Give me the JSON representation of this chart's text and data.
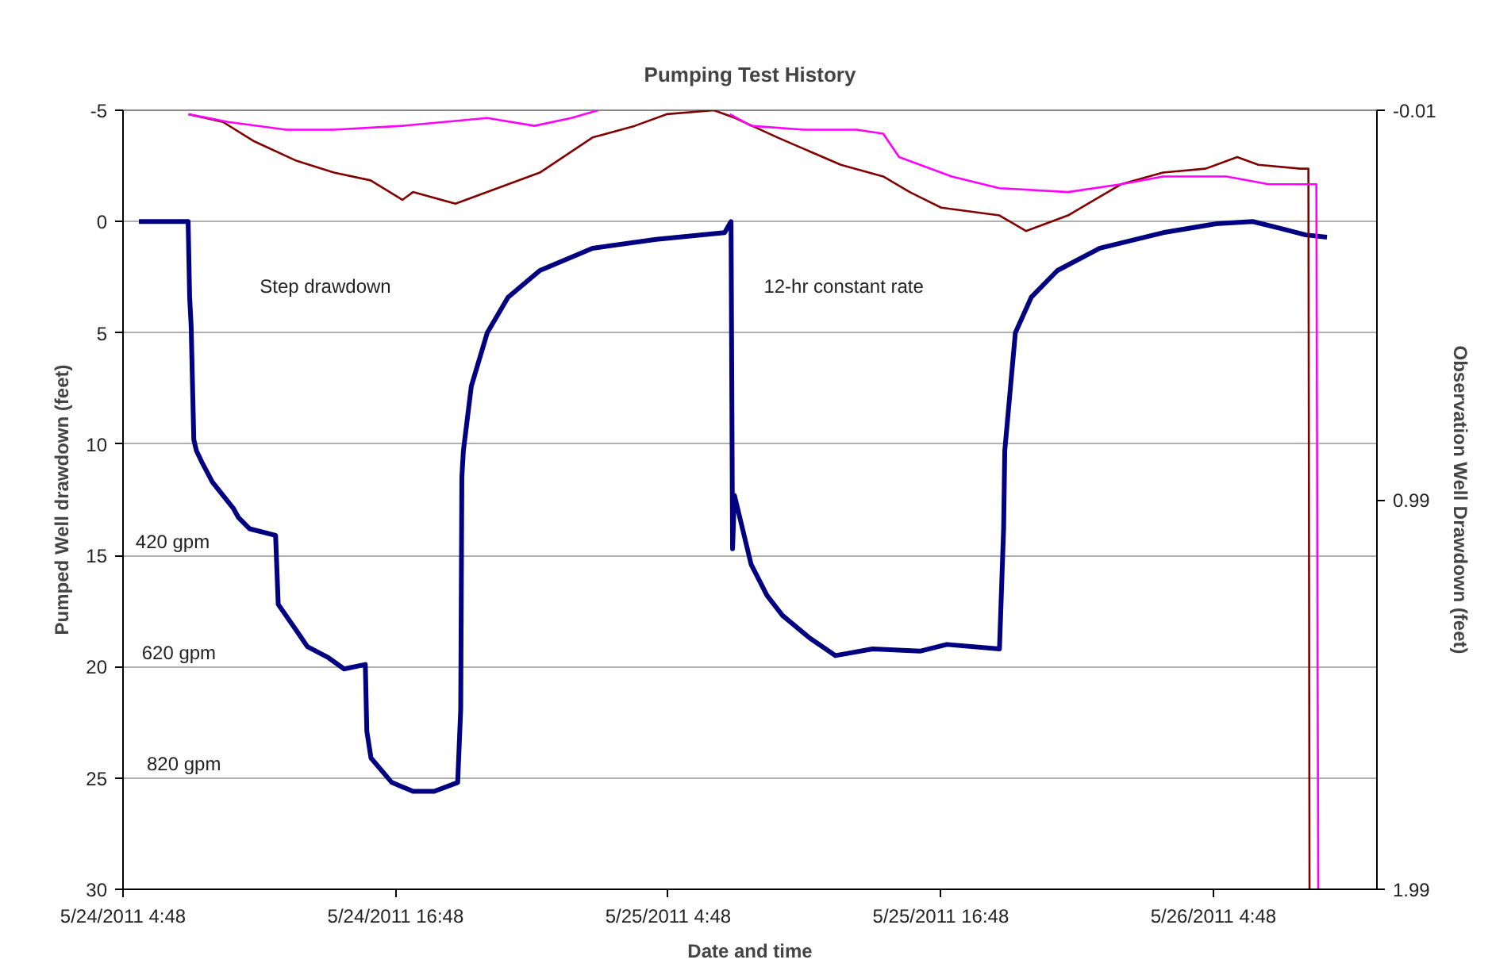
{
  "chart_data": {
    "type": "line",
    "title": "Pumping Test History",
    "xlabel": "Date and time",
    "ylabel": "Pumped Well drawdown (feet)",
    "y2label": "Observation Well Drawdown (feet)",
    "xlim": [
      "2011-05-24T04:48",
      "2011-05-26T12:00"
    ],
    "xticks": [
      {
        "value": "2011-05-24T04:48",
        "label": "5/24/2011 4:48"
      },
      {
        "value": "2011-05-24T16:48",
        "label": "5/24/2011 16:48"
      },
      {
        "value": "2011-05-25T04:48",
        "label": "5/25/2011 4:48"
      },
      {
        "value": "2011-05-25T16:48",
        "label": "5/25/2011 16:48"
      },
      {
        "value": "2011-05-26T04:48",
        "label": "5/26/2011 4:48"
      }
    ],
    "ylim": [
      30,
      -5
    ],
    "yticks": [
      -5,
      0,
      5,
      10,
      15,
      20,
      25,
      30
    ],
    "y2lim": [
      1.99,
      -0.01
    ],
    "y2ticks": [
      -0.01,
      0.99,
      1.99
    ],
    "grid": "y",
    "line_style": "solid",
    "series": [
      {
        "color": "#000080",
        "x": [
          "2011-05-24T05:30",
          "2011-05-24T07:40",
          "2011-05-24T07:44",
          "2011-05-24T07:48",
          "2011-05-24T07:55",
          "2011-05-24T08:02",
          "2011-05-24T08:16",
          "2011-05-24T08:44",
          "2011-05-24T09:40",
          "2011-05-24T09:53",
          "2011-05-24T10:22",
          "2011-05-24T11:31",
          "2011-05-24T11:38",
          "2011-05-24T12:27",
          "2011-05-24T12:55",
          "2011-05-24T13:51",
          "2011-05-24T14:32",
          "2011-05-24T15:28",
          "2011-05-24T15:32",
          "2011-05-24T15:43",
          "2011-05-24T16:38",
          "2011-05-24T17:34",
          "2011-05-24T18:30",
          "2011-05-24T19:32",
          "2011-05-24T19:40",
          "2011-05-24T19:43",
          "2011-05-24T19:47",
          "2011-05-24T20:08",
          "2011-05-24T20:50",
          "2011-05-24T21:45",
          "2011-05-24T23:09",
          "2011-05-25T01:28",
          "2011-05-25T04:16",
          "2011-05-25T07:17",
          "2011-05-25T07:34",
          "2011-05-25T07:38",
          "2011-05-25T07:43",
          "2011-05-25T08:27",
          "2011-05-25T09:09",
          "2011-05-25T09:50",
          "2011-05-25T11:01",
          "2011-05-25T12:10",
          "2011-05-25T13:48",
          "2011-05-25T15:53",
          "2011-05-25T17:04",
          "2011-05-25T19:23",
          "2011-05-25T19:34",
          "2011-05-25T19:37",
          "2011-05-25T20:05",
          "2011-05-25T20:47",
          "2011-05-25T21:56",
          "2011-05-25T23:48",
          "2011-05-26T02:35",
          "2011-05-26T04:55",
          "2011-05-26T06:32",
          "2011-05-26T07:43",
          "2011-05-26T08:52",
          "2011-05-26T09:48"
        ],
        "values": [
          0,
          0,
          3.4,
          4.7,
          9.8,
          10.3,
          10.8,
          11.7,
          12.9,
          13.3,
          13.8,
          14.1,
          17.2,
          18.4,
          19.1,
          19.6,
          20.1,
          19.9,
          22.9,
          24.1,
          25.2,
          25.6,
          25.6,
          25.2,
          21.9,
          11.5,
          10.3,
          7.4,
          5.0,
          3.4,
          2.2,
          1.2,
          0.8,
          0.5,
          0,
          14.7,
          12.3,
          15.4,
          16.8,
          17.7,
          18.7,
          19.5,
          19.2,
          19.3,
          19.0,
          19.2,
          13.8,
          10.3,
          5.0,
          3.4,
          2.2,
          1.2,
          0.5,
          0.1,
          0,
          0.3,
          0.6,
          0.7
        ]
      },
      {
        "color": "#800000",
        "axis": "y2",
        "x": [
          "2011-05-24T07:41",
          "2011-05-24T09:12",
          "2011-05-24T10:35",
          "2011-05-24T12:27",
          "2011-05-24T14:05",
          "2011-05-24T15:42",
          "2011-05-24T17:06",
          "2011-05-24T17:34",
          "2011-05-24T19:26",
          "2011-05-24T21:17",
          "2011-05-24T23:09",
          "2011-05-25T01:28",
          "2011-05-25T03:20",
          "2011-05-25T04:44",
          "2011-05-25T06:49",
          "2011-05-25T07:45",
          "2011-05-25T09:37",
          "2011-05-25T12:24",
          "2011-05-25T14:16",
          "2011-05-25T15:26",
          "2011-05-25T16:49",
          "2011-05-25T19:23",
          "2011-05-25T20:33",
          "2011-05-25T22:24",
          "2011-05-26T00:44",
          "2011-05-26T02:35",
          "2011-05-26T04:27",
          "2011-05-26T05:51",
          "2011-05-26T06:47",
          "2011-05-26T08:38",
          "2011-05-26T08:59",
          "2011-05-26T09:02"
        ],
        "values": [
          0.0,
          0.02,
          0.07,
          0.12,
          0.15,
          0.17,
          0.22,
          0.2,
          0.23,
          0.19,
          0.15,
          0.06,
          0.03,
          0.0,
          -0.01,
          0.01,
          0.06,
          0.13,
          0.16,
          0.2,
          0.24,
          0.26,
          0.3,
          0.26,
          0.18,
          0.15,
          0.14,
          0.11,
          0.13,
          0.14,
          0.14,
          1.99
        ]
      },
      {
        "color": "#ff00ff",
        "axis": "y2",
        "x": [
          "2011-05-24T07:41",
          "2011-05-24T09:26",
          "2011-05-24T11:59",
          "2011-05-24T14:05",
          "2011-05-24T17:06",
          "2011-05-24T20:50",
          "2011-05-24T22:55",
          "2011-05-25T00:32",
          "2011-05-25T01:43",
          "2011-05-25T04:30",
          "2011-05-25T07:31",
          "2011-05-25T08:27",
          "2011-05-25T10:47",
          "2011-05-25T13:06",
          "2011-05-25T14:16",
          "2011-05-25T14:58",
          "2011-05-25T17:17",
          "2011-05-25T19:23",
          "2011-05-25T22:24",
          "2011-05-26T00:44",
          "2011-05-26T02:35",
          "2011-05-26T05:23",
          "2011-05-26T07:14",
          "2011-05-26T09:20",
          "2011-05-26T09:25"
        ],
        "values": [
          0.0,
          0.02,
          0.04,
          0.04,
          0.03,
          0.01,
          0.03,
          0.01,
          -0.01,
          null,
          0.0,
          0.03,
          0.04,
          0.04,
          0.05,
          0.11,
          0.16,
          0.19,
          0.2,
          0.18,
          0.16,
          0.16,
          0.18,
          0.18,
          1.99
        ]
      }
    ],
    "annotations": [
      "Step drawdown",
      "12-hr constant rate",
      "420 gpm",
      "620 gpm",
      "820 gpm"
    ]
  }
}
